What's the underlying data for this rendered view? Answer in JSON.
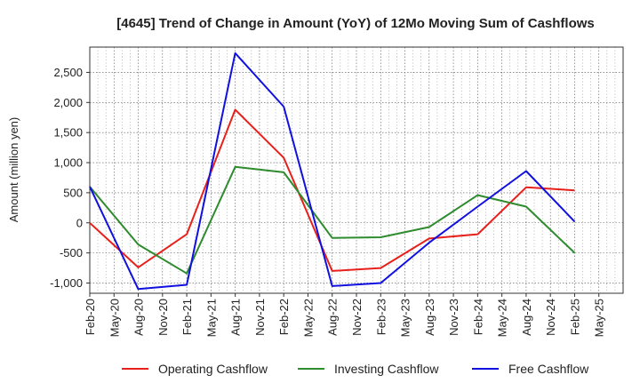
{
  "chart_data": {
    "type": "line",
    "title": "[4645]  Trend of Change in Amount (YoY) of 12Mo Moving Sum of Cashflows",
    "xlabel": "",
    "ylabel": "Amount (million yen)",
    "ylim": [
      -1170,
      2920
    ],
    "yticks": [
      2500,
      2000,
      1500,
      1000,
      500,
      0,
      -500,
      -1000
    ],
    "ytick_labels": [
      "2,500",
      "2,000",
      "1,500",
      "1,000",
      "500",
      "0",
      "-500",
      "-1,000"
    ],
    "categories": [
      "Feb-20",
      "May-20",
      "Aug-20",
      "Nov-20",
      "Feb-21",
      "May-21",
      "Aug-21",
      "Nov-21",
      "Feb-22",
      "May-22",
      "Aug-22",
      "Nov-22",
      "Feb-23",
      "May-23",
      "Aug-23",
      "Nov-23",
      "Feb-24",
      "May-24",
      "Aug-24",
      "Nov-24",
      "Feb-25",
      "May-25"
    ],
    "grid": true,
    "legend_position": "bottom",
    "series": [
      {
        "name": "Operating Cashflow",
        "color": "#e8201c",
        "points": [
          {
            "x": "Feb-20",
            "y": 0
          },
          {
            "x": "Aug-20",
            "y": -740
          },
          {
            "x": "Feb-21",
            "y": -190
          },
          {
            "x": "Aug-21",
            "y": 1880
          },
          {
            "x": "Feb-22",
            "y": 1080
          },
          {
            "x": "Aug-22",
            "y": -800
          },
          {
            "x": "Feb-23",
            "y": -750
          },
          {
            "x": "Aug-23",
            "y": -260
          },
          {
            "x": "Feb-24",
            "y": -190
          },
          {
            "x": "Aug-24",
            "y": 590
          },
          {
            "x": "Feb-25",
            "y": 540
          }
        ]
      },
      {
        "name": "Investing Cashflow",
        "color": "#2e8b2e",
        "points": [
          {
            "x": "Feb-20",
            "y": 600
          },
          {
            "x": "Aug-20",
            "y": -360
          },
          {
            "x": "Feb-21",
            "y": -840
          },
          {
            "x": "Aug-21",
            "y": 930
          },
          {
            "x": "Feb-22",
            "y": 840
          },
          {
            "x": "Aug-22",
            "y": -250
          },
          {
            "x": "Feb-23",
            "y": -240
          },
          {
            "x": "Aug-23",
            "y": -70
          },
          {
            "x": "Feb-24",
            "y": 460
          },
          {
            "x": "Aug-24",
            "y": 270
          },
          {
            "x": "Feb-25",
            "y": -500
          }
        ]
      },
      {
        "name": "Free Cashflow",
        "color": "#1010e0",
        "points": [
          {
            "x": "Feb-20",
            "y": 600
          },
          {
            "x": "Aug-20",
            "y": -1100
          },
          {
            "x": "Feb-21",
            "y": -1030
          },
          {
            "x": "Aug-21",
            "y": 2820
          },
          {
            "x": "Feb-22",
            "y": 1930
          },
          {
            "x": "Aug-22",
            "y": -1050
          },
          {
            "x": "Feb-23",
            "y": -1000
          },
          {
            "x": "Aug-23",
            "y": -330
          },
          {
            "x": "Feb-24",
            "y": 270
          },
          {
            "x": "Aug-24",
            "y": 860
          },
          {
            "x": "Feb-25",
            "y": 20
          }
        ]
      }
    ]
  }
}
